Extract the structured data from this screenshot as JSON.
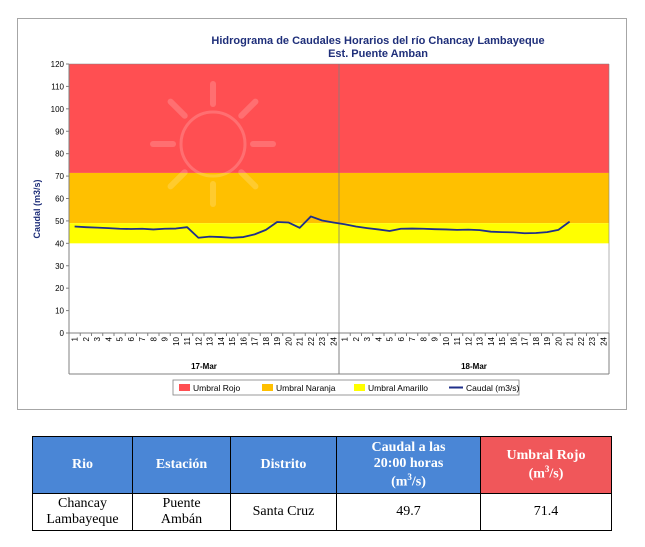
{
  "chart_data": {
    "type": "line",
    "title": "Hidrograma de Caudales Horarios del río Chancay Lambayeque",
    "subtitle": "Est. Puente Amban",
    "ylabel": "Caudal  (m3/s)",
    "ylim": [
      0,
      120
    ],
    "yticks": [
      0,
      10,
      20,
      30,
      40,
      50,
      60,
      70,
      80,
      90,
      100,
      110,
      120
    ],
    "x_tick_labels": [
      "1",
      "2",
      "3",
      "4",
      "5",
      "6",
      "7",
      "8",
      "9",
      "10",
      "11",
      "12",
      "13",
      "14",
      "15",
      "16",
      "17",
      "18",
      "19",
      "20",
      "21",
      "22",
      "23",
      "24",
      "1",
      "2",
      "3",
      "4",
      "5",
      "6",
      "7",
      "8",
      "9",
      "10",
      "11",
      "12",
      "13",
      "14",
      "15",
      "16",
      "17",
      "18",
      "19",
      "20",
      "21",
      "22",
      "23",
      "24"
    ],
    "day_labels": [
      "17-Mar",
      "18-Mar"
    ],
    "bands": [
      {
        "name": "Umbral Rojo",
        "from": 71.4,
        "to": 120,
        "color": "#ff4f52"
      },
      {
        "name": "Umbral Naranja",
        "from": 49,
        "to": 71.4,
        "color": "#ffc000"
      },
      {
        "name": "Umbral Amarillo",
        "from": 40,
        "to": 49,
        "color": "#ffff00"
      }
    ],
    "series": [
      {
        "name": "Caudal (m3/s)",
        "color": "#1f2f8a",
        "values": [
          47.5,
          47.2,
          47.0,
          46.8,
          46.5,
          46.4,
          46.5,
          46.2,
          46.5,
          46.6,
          47.2,
          42.5,
          43.0,
          42.8,
          42.5,
          42.8,
          44.0,
          46.0,
          49.5,
          49.3,
          46.9,
          52.0,
          50.2,
          49.3,
          48.5,
          47.5,
          46.8,
          46.2,
          45.5,
          46.5,
          46.6,
          46.5,
          46.3,
          46.2,
          46.0,
          46.1,
          45.9,
          45.2,
          45.0,
          44.9,
          44.5,
          44.6,
          45.0,
          46.0,
          49.7
        ]
      }
    ],
    "legend": [
      "Umbral Rojo",
      "Umbral Naranja",
      "Umbral Amarillo",
      "Caudal (m3/s)"
    ],
    "legend_position": "bottom",
    "grid": false
  },
  "table": {
    "headers": {
      "rio": "Rio",
      "estacion": "Estación",
      "distrito": "Distrito",
      "caudal_line1": "Caudal a las",
      "caudal_line2": "20:00 horas",
      "caudal_unit": "(m",
      "caudal_unit_sup": "3",
      "caudal_unit_end": "/s)",
      "umbral_line1": "Umbral Rojo",
      "umbral_unit": "(m",
      "umbral_unit_sup": "3",
      "umbral_unit_end": "/s)"
    },
    "row": {
      "rio_line1": "Chancay",
      "rio_line2": "Lambayeque",
      "estacion_line1": "Puente",
      "estacion_line2": "Ambán",
      "distrito": "Santa Cruz",
      "caudal": "49.7",
      "umbral": "71.4"
    },
    "colors": {
      "header_blue": "#4a86d6",
      "header_red": "#f0575a"
    }
  }
}
